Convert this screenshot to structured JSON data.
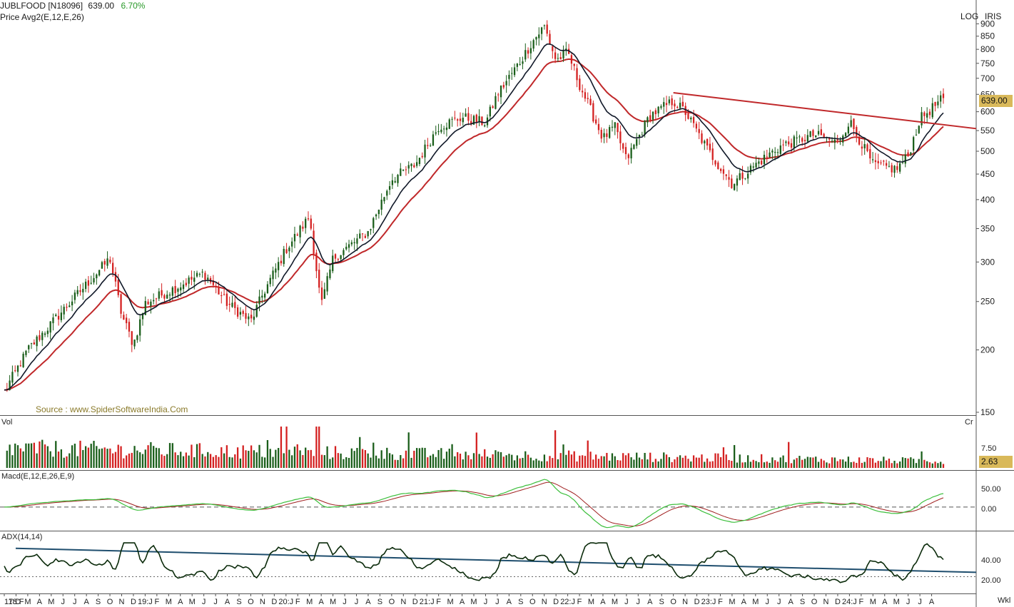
{
  "header": {
    "symbol": "JUBLFOOD [N18096]",
    "price": "639.00",
    "change": "6.70%",
    "indicator_line": "Price  Avg2(E,12,E,26)",
    "scale_mode": "LOG",
    "scale_label": "IRIS",
    "source": "Source : www.SpiderSoftwareIndia.Com",
    "timeframe": "Wkl"
  },
  "colors": {
    "up_candle": "#1a5e1a",
    "down_candle": "#d42020",
    "ema12": "#101828",
    "ema26": "#c0282a",
    "trendline": "#c0282a",
    "macd": "#3cbf3c",
    "signal": "#a02020",
    "adx": "#0a2a0a",
    "adx_trend": "#1f4e6e",
    "price_tag": "#d9b95a"
  },
  "panels": {
    "volume_label": "Vol",
    "volume_unit": "Cr",
    "volume_tick": "7.50",
    "volume_last": "2.63",
    "macd_label": "Macd(E,12,E,26,E,9)",
    "macd_ticks": [
      "50.00",
      "0.00"
    ],
    "adx_label": "ADX(14,14)",
    "adx_ticks": [
      "40.00",
      "20.00"
    ]
  },
  "chart_data": {
    "type": "candlestick",
    "scale": "log",
    "ylim": [
      150,
      910
    ],
    "y_ticks": [
      900,
      850,
      800,
      750,
      700,
      650,
      600,
      550,
      500,
      450,
      400,
      350,
      300,
      250,
      200,
      150
    ],
    "last_price": 639.0,
    "x_labels": [
      "17:D",
      "18:F",
      "M",
      "A",
      "M",
      "J",
      "J",
      "A",
      "S",
      "O",
      "N",
      "D",
      "19:J",
      "F",
      "M",
      "A",
      "M",
      "J",
      "J",
      "A",
      "S",
      "O",
      "N",
      "D",
      "20:J",
      "F",
      "M",
      "A",
      "M",
      "J",
      "J",
      "A",
      "S",
      "O",
      "N",
      "D",
      "21:J",
      "F",
      "M",
      "A",
      "M",
      "J",
      "J",
      "A",
      "S",
      "O",
      "N",
      "D",
      "22:J",
      "F",
      "M",
      "A",
      "M",
      "J",
      "J",
      "A",
      "S",
      "O",
      "N",
      "D",
      "23:J",
      "F",
      "M",
      "A",
      "M",
      "J",
      "J",
      "A",
      "S",
      "O",
      "N",
      "D",
      "24:J",
      "F",
      "M",
      "A",
      "M",
      "J",
      "J",
      "A"
    ],
    "price_anchors": [
      {
        "t": "2017-12",
        "close": 165
      },
      {
        "t": "2018-02",
        "close": 200
      },
      {
        "t": "2018-06",
        "close": 255
      },
      {
        "t": "2018-09",
        "close": 305
      },
      {
        "t": "2018-10",
        "close": 235
      },
      {
        "t": "2018-11",
        "close": 205
      },
      {
        "t": "2018-12",
        "close": 248
      },
      {
        "t": "2019-05",
        "close": 285
      },
      {
        "t": "2019-07",
        "close": 248
      },
      {
        "t": "2019-09",
        "close": 228
      },
      {
        "t": "2019-10",
        "close": 258
      },
      {
        "t": "2019-12",
        "close": 318
      },
      {
        "t": "2020-02",
        "close": 370
      },
      {
        "t": "2020-03",
        "close": 245
      },
      {
        "t": "2020-04",
        "close": 305
      },
      {
        "t": "2020-07",
        "close": 345
      },
      {
        "t": "2020-09",
        "close": 440
      },
      {
        "t": "2020-11",
        "close": 470
      },
      {
        "t": "2021-01",
        "close": 560
      },
      {
        "t": "2021-03",
        "close": 585
      },
      {
        "t": "2021-05",
        "close": 570
      },
      {
        "t": "2021-06",
        "close": 650
      },
      {
        "t": "2021-08",
        "close": 760
      },
      {
        "t": "2021-09",
        "close": 830
      },
      {
        "t": "2021-10",
        "close": 890
      },
      {
        "t": "2021-11",
        "close": 760
      },
      {
        "t": "2021-12",
        "close": 790
      },
      {
        "t": "2022-01",
        "close": 680
      },
      {
        "t": "2022-03",
        "close": 530
      },
      {
        "t": "2022-04",
        "close": 560
      },
      {
        "t": "2022-05",
        "close": 480
      },
      {
        "t": "2022-07",
        "close": 590
      },
      {
        "t": "2022-09",
        "close": 630
      },
      {
        "t": "2022-10",
        "close": 600
      },
      {
        "t": "2022-12",
        "close": 500
      },
      {
        "t": "2023-02",
        "close": 430
      },
      {
        "t": "2023-04",
        "close": 470
      },
      {
        "t": "2023-06",
        "close": 510
      },
      {
        "t": "2023-09",
        "close": 540
      },
      {
        "t": "2023-11",
        "close": 520
      },
      {
        "t": "2023-12",
        "close": 575
      },
      {
        "t": "2024-02",
        "close": 470
      },
      {
        "t": "2024-04",
        "close": 460
      },
      {
        "t": "2024-05",
        "close": 490
      },
      {
        "t": "2024-06",
        "close": 580
      },
      {
        "t": "2024-08",
        "close": 639
      }
    ],
    "trendline": [
      {
        "t": "2022-09",
        "price": 655
      },
      {
        "t": "2024-08",
        "price": 555
      }
    ],
    "volume_peak_label": 7.5,
    "macd_range": [
      -60,
      75
    ],
    "adx_range": [
      8,
      55
    ]
  }
}
